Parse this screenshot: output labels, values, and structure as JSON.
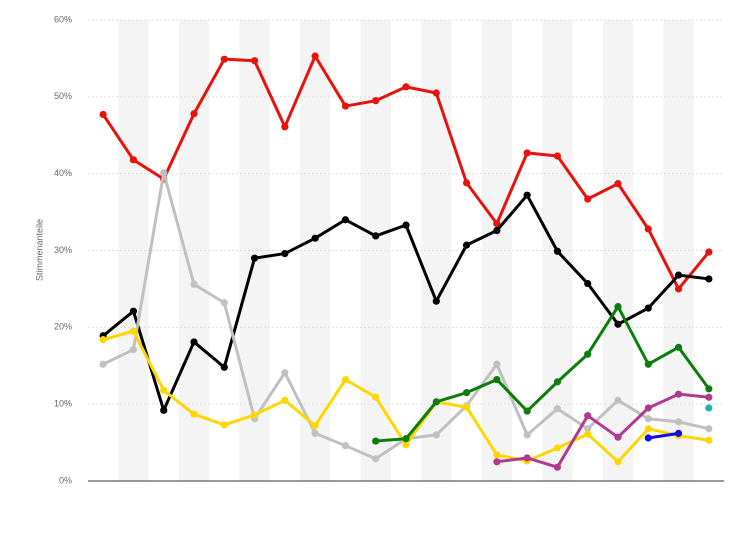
{
  "chart_data": {
    "type": "line",
    "y_label": "Stimmenanteile",
    "categories": [
      null,
      null,
      null,
      null,
      null,
      null,
      null,
      null,
      null,
      null,
      null,
      null,
      null,
      null,
      null,
      null,
      null,
      null,
      null,
      null,
      null
    ],
    "ylim": [
      0,
      60
    ],
    "yticks": [
      {
        "value": 0,
        "label": "0%"
      },
      {
        "value": 10,
        "label": "10%"
      },
      {
        "value": 20,
        "label": "20%"
      },
      {
        "value": 30,
        "label": "30%"
      },
      {
        "value": 40,
        "label": "40%"
      },
      {
        "value": 50,
        "label": "50%"
      },
      {
        "value": 60,
        "label": "60%"
      }
    ],
    "grid": true,
    "series": [
      {
        "color": "#e8120c",
        "values": [
          47.7,
          41.8,
          39.3,
          47.8,
          54.9,
          54.7,
          46.1,
          55.3,
          48.8,
          49.5,
          51.3,
          50.5,
          38.8,
          33.5,
          42.7,
          42.3,
          36.7,
          38.7,
          32.8,
          25.0,
          29.8
        ]
      },
      {
        "color": "#000000",
        "values": [
          18.9,
          22.1,
          9.2,
          18.1,
          14.8,
          29.0,
          29.6,
          31.6,
          34.0,
          31.9,
          33.3,
          23.4,
          30.7,
          32.6,
          37.2,
          29.9,
          25.7,
          20.4,
          22.5,
          26.8,
          26.3
        ]
      },
      {
        "color": "#c0c0c0",
        "values": [
          15.2,
          17.1,
          40.1,
          25.6,
          23.2,
          8.1,
          14.1,
          6.2,
          4.6,
          2.9,
          5.5,
          6.0,
          9.8,
          15.2,
          6.0,
          9.4,
          6.8,
          10.5,
          8.1,
          7.7,
          6.8
        ]
      },
      {
        "color": "#ffd700",
        "values": [
          18.4,
          19.5,
          11.8,
          8.7,
          7.3,
          8.6,
          10.5,
          7.2,
          13.2,
          10.9,
          4.7,
          10.3,
          9.6,
          3.4,
          2.6,
          4.3,
          6.1,
          2.5,
          6.8,
          5.9,
          5.3
        ]
      },
      {
        "color": "#0a7d0a",
        "values": [
          null,
          null,
          null,
          null,
          null,
          null,
          null,
          null,
          null,
          5.2,
          5.5,
          10.3,
          11.5,
          13.2,
          9.1,
          12.9,
          16.5,
          22.7,
          15.2,
          17.4,
          12.0
        ]
      },
      {
        "color": "#b03a8e",
        "values": [
          null,
          null,
          null,
          null,
          null,
          null,
          null,
          null,
          null,
          null,
          null,
          null,
          null,
          2.5,
          3.0,
          1.8,
          8.5,
          5.7,
          9.5,
          11.3,
          10.9
        ]
      },
      {
        "color": "#1010e0",
        "values": [
          null,
          null,
          null,
          null,
          null,
          null,
          null,
          null,
          null,
          null,
          null,
          null,
          null,
          null,
          null,
          null,
          null,
          null,
          5.6,
          6.2,
          null
        ]
      },
      {
        "color": "#20b2aa",
        "values": [
          null,
          null,
          null,
          null,
          null,
          null,
          null,
          null,
          null,
          null,
          null,
          null,
          null,
          null,
          null,
          null,
          null,
          null,
          null,
          null,
          9.5
        ]
      }
    ]
  }
}
